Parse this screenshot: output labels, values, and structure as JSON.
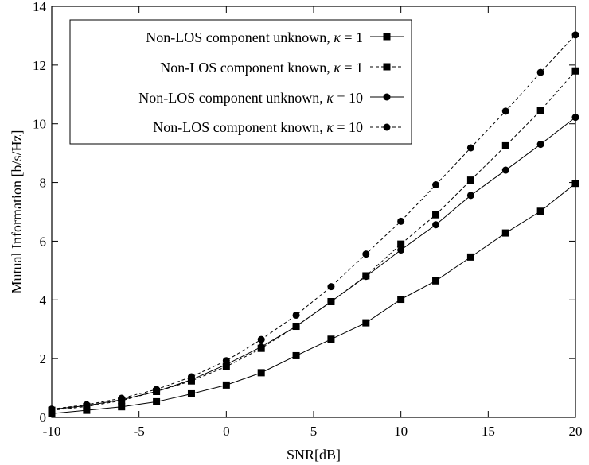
{
  "chart_data": {
    "type": "line",
    "xlabel": "SNR[dB]",
    "ylabel": "Mutual Information [b/s/Hz]",
    "xlim": [
      -10,
      20
    ],
    "ylim": [
      0,
      14
    ],
    "xticks": [
      -10,
      -5,
      0,
      5,
      10,
      15,
      20
    ],
    "yticks": [
      0,
      2,
      4,
      6,
      8,
      10,
      12,
      14
    ],
    "x_tick_labels": [
      "-10",
      "-5",
      "0",
      "5",
      "10",
      "15",
      "20"
    ],
    "y_tick_labels": [
      "0",
      "2",
      "4",
      "6",
      "8",
      "10",
      "12",
      "14"
    ],
    "grid": false,
    "legend_position": "top-left",
    "x": [
      -10,
      -8,
      -6,
      -4,
      -2,
      0,
      2,
      4,
      6,
      8,
      10,
      12,
      14,
      16,
      18,
      20
    ],
    "series": [
      {
        "name": "Non-LOS component unknown, κ = 1",
        "marker": "square",
        "line": "solid",
        "values": [
          0.13,
          0.24,
          0.36,
          0.53,
          0.8,
          1.1,
          1.52,
          2.1,
          2.66,
          3.22,
          4.02,
          4.65,
          5.46,
          6.28,
          7.02,
          7.97
        ]
      },
      {
        "name": "Non-LOS component known, κ = 1",
        "marker": "square",
        "line": "dashed",
        "values": [
          0.24,
          0.37,
          0.57,
          0.88,
          1.24,
          1.73,
          2.35,
          3.1,
          3.94,
          4.82,
          5.9,
          6.9,
          8.08,
          9.25,
          10.45,
          11.8
        ]
      },
      {
        "name": "Non-LOS component unknown, κ = 10",
        "marker": "circle",
        "line": "solid",
        "values": [
          0.27,
          0.4,
          0.6,
          0.88,
          1.28,
          1.8,
          2.4,
          3.1,
          3.94,
          4.8,
          5.7,
          6.56,
          7.56,
          8.42,
          9.3,
          10.22
        ]
      },
      {
        "name": "Non-LOS component known, κ = 10",
        "marker": "circle",
        "line": "dashed",
        "values": [
          0.28,
          0.43,
          0.65,
          0.95,
          1.38,
          1.93,
          2.65,
          3.48,
          4.45,
          5.56,
          6.68,
          7.92,
          9.18,
          10.43,
          11.75,
          13.03
        ]
      }
    ],
    "legend": [
      {
        "label": "Non-LOS component unknown, ",
        "kappa": "κ",
        "eq": " = 1"
      },
      {
        "label": "Non-LOS component known, ",
        "kappa": "κ",
        "eq": " = 1"
      },
      {
        "label": "Non-LOS component unknown, ",
        "kappa": "κ",
        "eq": " = 10"
      },
      {
        "label": "Non-LOS component known, ",
        "kappa": "κ",
        "eq": " = 10"
      }
    ]
  }
}
